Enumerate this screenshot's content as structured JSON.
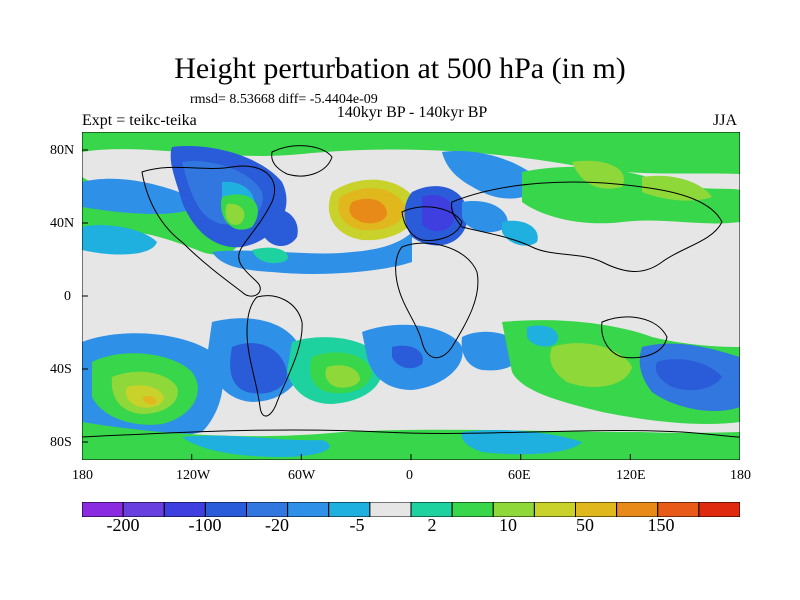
{
  "header": {
    "title": "Height perturbation at 500 hPa (in m)",
    "stats": "rmsd= 8.53668 diff= -5.4404e-09",
    "experiment": "Expt = teikc-teika",
    "period": "140kyr BP - 140kyr BP",
    "season": "JJA"
  },
  "axes": {
    "lat_ticks": [
      "80N",
      "40N",
      "0",
      "40S",
      "80S"
    ],
    "lon_ticks": [
      "180",
      "120W",
      "60W",
      "0",
      "60E",
      "120E",
      "180"
    ]
  },
  "colorbar": {
    "colors": [
      "#8a2be2",
      "#6a3fe0",
      "#3f3fdf",
      "#2a5bd8",
      "#3276e0",
      "#2f90e8",
      "#1fb0e0",
      "#e6e6e6",
      "#1ed2a0",
      "#38d64a",
      "#8fd83a",
      "#c8d22a",
      "#e0b81e",
      "#e88a18",
      "#e85a18",
      "#e02a10"
    ],
    "labels": [
      "-200",
      "-100",
      "-20",
      "-5",
      "2",
      "10",
      "50",
      "150"
    ]
  },
  "map": {
    "background": "#e6e6e6"
  }
}
